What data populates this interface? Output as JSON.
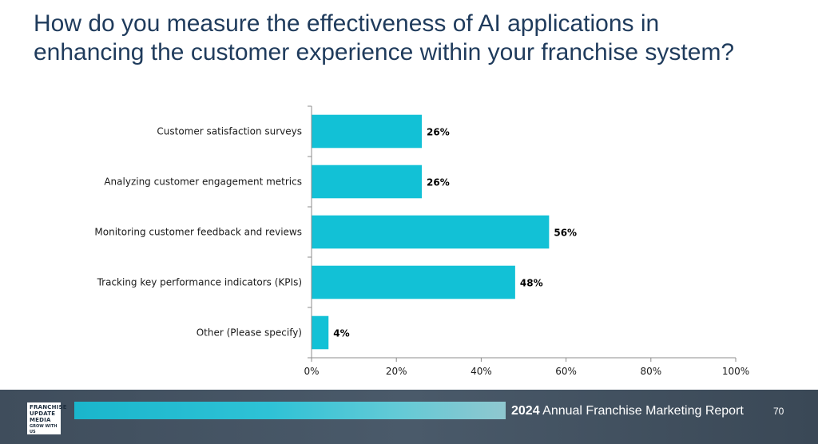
{
  "slide": {
    "title_line1": "How do you measure the effectiveness of AI applications in",
    "title_line2": "enhancing the customer experience within your franchise system?"
  },
  "chart_data": {
    "type": "bar",
    "orientation": "horizontal",
    "title": "How do you measure the effectiveness of AI applications in enhancing the customer experience within your franchise system?",
    "categories": [
      "Customer satisfaction surveys",
      "Analyzing customer engagement metrics",
      "Monitoring customer feedback and reviews",
      "Tracking key performance indicators (KPIs)",
      "Other (Please specify)"
    ],
    "values": [
      26,
      26,
      56,
      48,
      4
    ],
    "value_labels": [
      "26%",
      "26%",
      "56%",
      "48%",
      "4%"
    ],
    "xlim": [
      0,
      100
    ],
    "x_ticks": [
      0,
      20,
      40,
      60,
      80,
      100
    ],
    "x_tick_labels": [
      "0%",
      "20%",
      "40%",
      "60%",
      "80%",
      "100%"
    ],
    "xlabel": "",
    "ylabel": "",
    "grid": false,
    "legend": "none",
    "bar_color": "#12c1d6"
  },
  "footer": {
    "logo_line1": "FRANCHISE",
    "logo_line2": "UPDATE",
    "logo_line3": "MEDIA",
    "logo_tagline": "GROW WITH US",
    "report_year": "2024",
    "report_title": "Annual Franchise Marketing Report",
    "page_number": "70"
  }
}
